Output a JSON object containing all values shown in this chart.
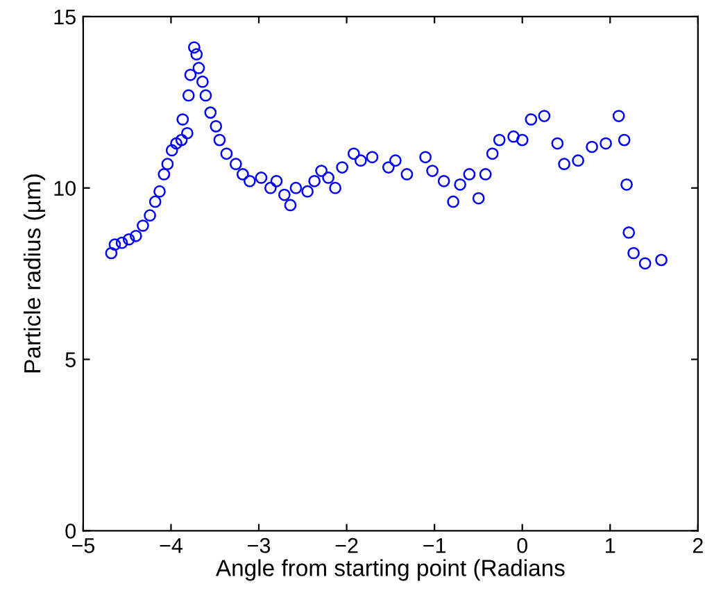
{
  "chart_data": {
    "type": "scatter",
    "xlabel": "Angle from starting point (Radians",
    "ylabel": "Particle radius (µm)",
    "marker": "circle",
    "grid": false,
    "xlim": [
      -5,
      2
    ],
    "xticks": [
      {
        "value": -5,
        "label": "−5"
      },
      {
        "value": -4,
        "label": "−4"
      },
      {
        "value": -3,
        "label": "−3"
      },
      {
        "value": -2,
        "label": "−2"
      },
      {
        "value": -1,
        "label": "−1"
      },
      0,
      1,
      2
    ],
    "ylim": [
      0,
      15
    ],
    "yticks": [
      0,
      5,
      10,
      15
    ],
    "series": [
      {
        "color": "#0000ff",
        "x": [
          -4.68,
          -4.64,
          -4.56,
          -4.48,
          -4.4,
          -4.32,
          -4.24,
          -4.18,
          -4.13,
          -4.08,
          -4.04,
          -3.99,
          -3.94,
          -3.88,
          -3.867,
          -3.815,
          -3.8,
          -3.779,
          -3.736,
          -3.709,
          -3.684,
          -3.641,
          -3.605,
          -3.551,
          -3.488,
          -3.447,
          -3.368,
          -3.262,
          -3.183,
          -3.104,
          -2.973,
          -2.867,
          -2.799,
          -2.709,
          -2.641,
          -2.578,
          -2.446,
          -2.367,
          -2.288,
          -2.209,
          -2.13,
          -2.051,
          -1.919,
          -1.84,
          -1.709,
          -1.524,
          -1.445,
          -1.314,
          -1.103,
          -1.024,
          -0.893,
          -0.787,
          -0.708,
          -0.603,
          -0.498,
          -0.419,
          -0.34,
          -0.261,
          -0.1,
          0.0,
          0.1,
          0.25,
          0.4,
          0.477,
          0.635,
          0.793,
          0.951,
          1.098,
          1.161,
          1.188,
          1.213,
          1.267,
          1.398,
          1.583
        ],
        "values": [
          8.1,
          8.35,
          8.4,
          8.5,
          8.6,
          8.9,
          9.2,
          9.6,
          9.9,
          10.4,
          10.7,
          11.1,
          11.3,
          11.4,
          12.0,
          11.6,
          12.7,
          13.3,
          14.1,
          13.9,
          13.5,
          13.1,
          12.7,
          12.2,
          11.8,
          11.4,
          11.0,
          10.7,
          10.4,
          10.2,
          10.3,
          10.0,
          10.2,
          9.8,
          9.5,
          10.0,
          9.9,
          10.2,
          10.5,
          10.3,
          10.0,
          10.6,
          11.0,
          10.8,
          10.9,
          10.6,
          10.8,
          10.4,
          10.9,
          10.5,
          10.2,
          9.6,
          10.1,
          10.4,
          9.7,
          10.4,
          11.0,
          11.4,
          11.5,
          11.4,
          12.0,
          12.1,
          11.3,
          10.7,
          10.8,
          11.2,
          11.3,
          12.1,
          11.4,
          10.1,
          8.7,
          8.1,
          7.8,
          7.9
        ]
      }
    ]
  }
}
